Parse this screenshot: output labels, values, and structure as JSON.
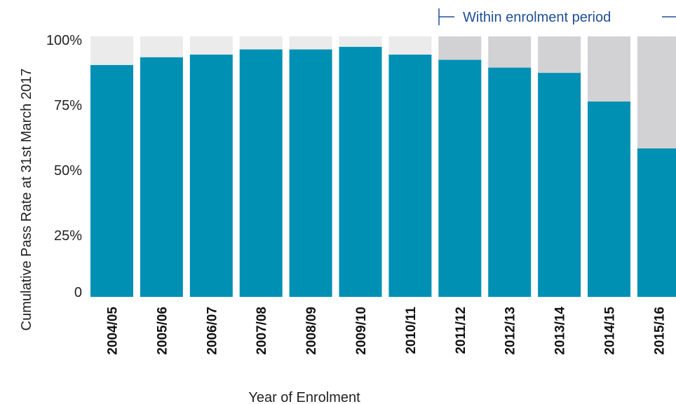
{
  "chart_data": {
    "type": "bar",
    "stacked": true,
    "categories": [
      "2004/05",
      "2005/06",
      "2006/07",
      "2007/08",
      "2008/09",
      "2009/10",
      "2010/11",
      "2011/12",
      "2012/13",
      "2013/14",
      "2014/15",
      "2015/16"
    ],
    "series": [
      {
        "values": [
          89,
          92,
          93,
          95,
          95,
          96,
          93,
          91,
          88,
          86,
          75,
          57
        ]
      }
    ],
    "remainder_colors": [
      "#ebebeb",
      "#ebebeb",
      "#ebebeb",
      "#ebebeb",
      "#ebebeb",
      "#ebebeb",
      "#ebebeb",
      "#d2d2d4",
      "#d2d2d4",
      "#d2d2d4",
      "#d2d2d4",
      "#d2d2d4"
    ],
    "bar_color": "#0090b4",
    "title": "",
    "xlabel": "Year of Enrolment",
    "ylabel": "Cumulative Pass Rate at 31st March 2017",
    "yticks": [
      {
        "value": 100,
        "label": "100%"
      },
      {
        "value": 75,
        "label": "75%"
      },
      {
        "value": 50,
        "label": "50%"
      },
      {
        "value": 25,
        "label": "25%"
      },
      {
        "value": 0,
        "label": "0"
      }
    ],
    "ylim": [
      0,
      100
    ],
    "annotation": "Within enrolment period",
    "annotation_start_category": "2011/12",
    "grid": false,
    "legend": "none"
  }
}
